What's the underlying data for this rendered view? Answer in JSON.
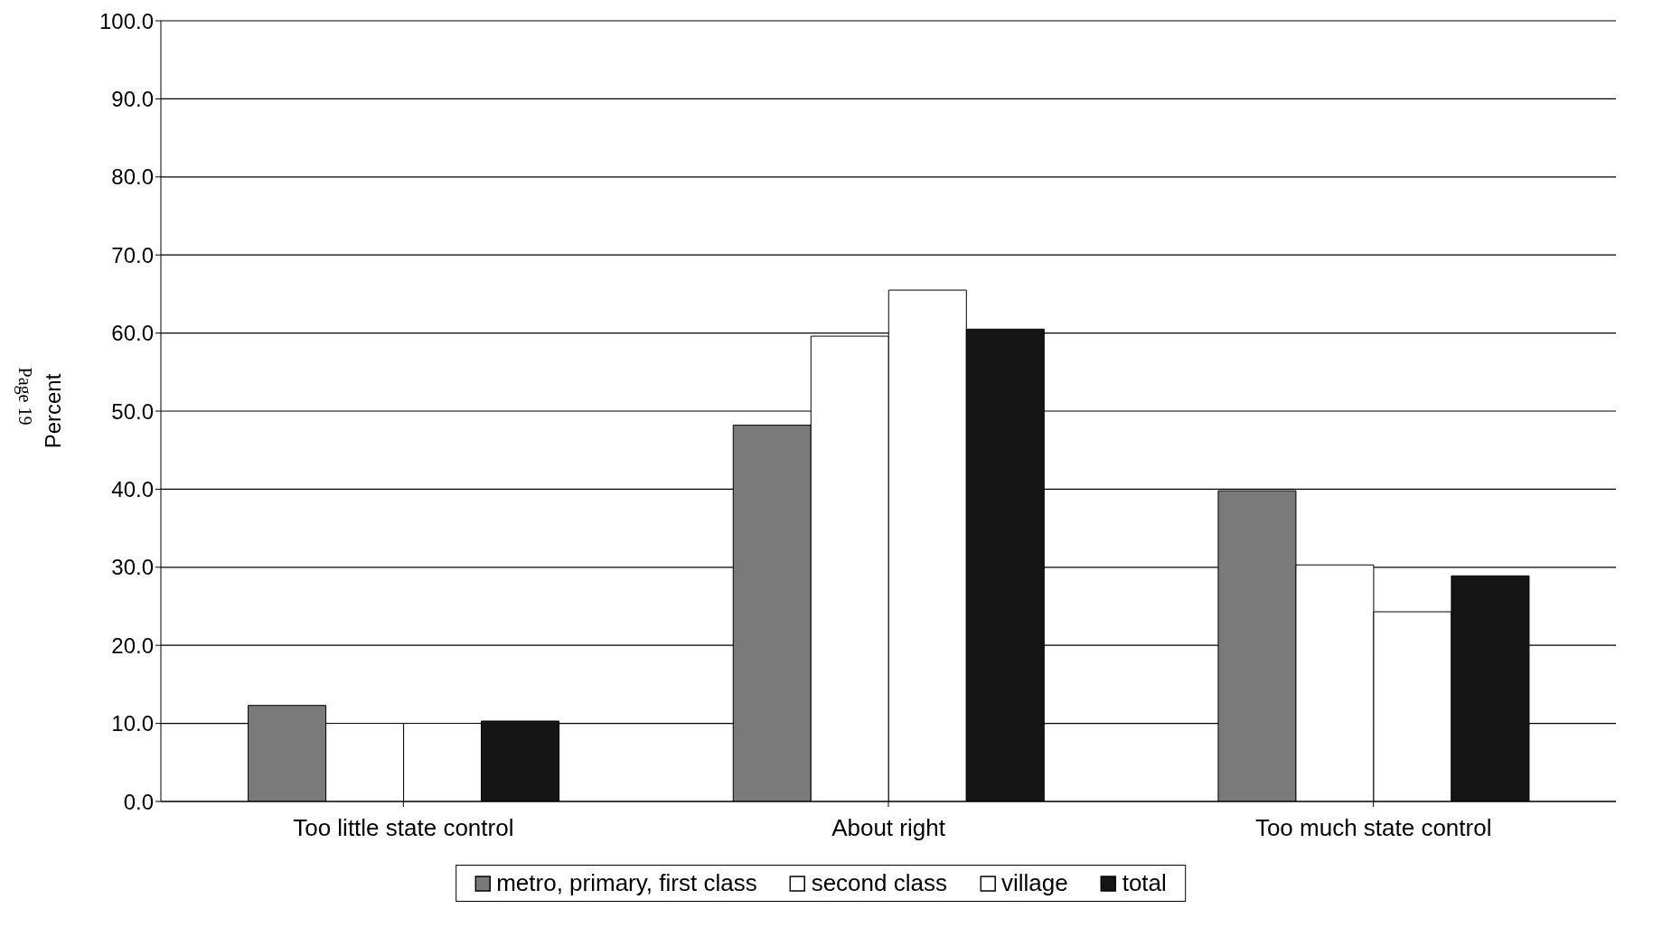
{
  "chart_data": {
    "type": "bar",
    "ylabel": "Percent",
    "categories": [
      "Too little state control",
      "About right",
      "Too much state control"
    ],
    "series": [
      {
        "name": "metro, primary, first class",
        "color": "#7a7a7a",
        "values": [
          12.3,
          48.2,
          39.8
        ]
      },
      {
        "name": "second class",
        "color": "#ffffff",
        "values": [
          10.0,
          59.6,
          30.3
        ]
      },
      {
        "name": "village",
        "color": "#ffffff",
        "values": [
          10.0,
          65.5,
          24.3
        ]
      },
      {
        "name": "total",
        "color": "#151515",
        "values": [
          10.3,
          60.5,
          28.9
        ]
      }
    ],
    "ylim": [
      0,
      100
    ],
    "yticks": [
      {
        "value": 0,
        "label": "0.0"
      },
      {
        "value": 10,
        "label": "10.0"
      },
      {
        "value": 20,
        "label": "20.0"
      },
      {
        "value": 30,
        "label": "30.0"
      },
      {
        "value": 40,
        "label": "40.0"
      },
      {
        "value": 50,
        "label": "50.0"
      },
      {
        "value": 60,
        "label": "60.0"
      },
      {
        "value": 70,
        "label": "70.0"
      },
      {
        "value": 80,
        "label": "80.0"
      },
      {
        "value": 90,
        "label": "90.0"
      },
      {
        "value": 100,
        "label": "100.0"
      }
    ],
    "grid": "y",
    "legend": "bottom",
    "annotations": [
      "Page 19"
    ]
  }
}
